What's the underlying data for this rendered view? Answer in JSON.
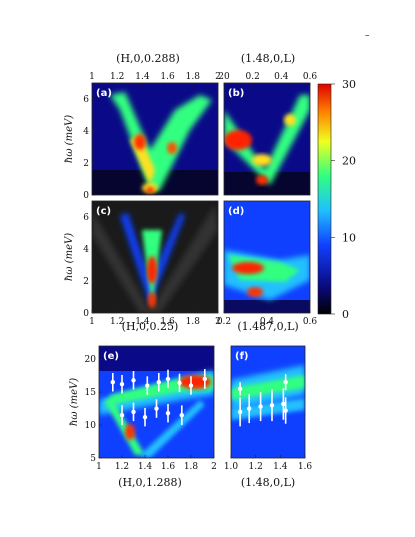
{
  "figure": {
    "corner_mark": "–",
    "top_titles": [
      "(H,0,0.288)",
      "(1.48,0,L)"
    ],
    "mid_titles": [
      "(H,0,0.25)",
      "(1.487,0,L)"
    ],
    "bottom_titles": [
      "(H,0,1.288)",
      "(1.48,0,L)"
    ],
    "ylabel_energy": "ħω (meV)",
    "colorbar": {
      "ticks": [
        "30",
        "20",
        "10",
        "0"
      ],
      "range": [
        0,
        30
      ]
    },
    "panels": [
      "(a)",
      "(b)",
      "(c)",
      "(d)",
      "(e)",
      "(f)"
    ]
  },
  "chart_data": [
    {
      "type": "heatmap",
      "panel": "(a)",
      "xlabel": "(H,0,0.288)",
      "ylabel": "ħω (meV)",
      "xlim": [
        1,
        2
      ],
      "ylim": [
        0,
        7
      ],
      "xticks": [
        "1",
        "1.2",
        "1.4",
        "1.6",
        "1.8",
        "2"
      ],
      "yticks": [
        "0",
        "2",
        "4",
        "6"
      ]
    },
    {
      "type": "heatmap",
      "panel": "(b)",
      "xlabel": "(1.48,0,L)",
      "xlim": [
        0,
        0.7
      ],
      "ylim": [
        0,
        7
      ],
      "xticks": [
        "20",
        "0.2",
        "0.4",
        "0.6"
      ]
    },
    {
      "type": "heatmap",
      "panel": "(c)",
      "xlabel": "(H,0,0.25)",
      "ylabel": "ħω (meV)",
      "xlim": [
        1,
        2
      ],
      "ylim": [
        0,
        7
      ],
      "xticks": [
        "1",
        "1.2",
        "1.4",
        "1.6",
        "1.8",
        "2"
      ],
      "yticks": [
        "0",
        "2",
        "4",
        "6"
      ]
    },
    {
      "type": "heatmap",
      "panel": "(d)",
      "xlabel": "(1.487,0,L)",
      "xlim": [
        0,
        0.7
      ],
      "ylim": [
        0,
        7
      ],
      "xticks": [
        "0.2",
        "0.4",
        "0.6"
      ]
    },
    {
      "type": "heatmap",
      "panel": "(e)",
      "xlabel": "(H,0,1.288)",
      "ylabel": "ħω (meV)",
      "xlim": [
        1,
        2
      ],
      "ylim": [
        5,
        22
      ],
      "xticks": [
        "1",
        "1.2",
        "1.4",
        "1.6",
        "1.8",
        "2"
      ],
      "yticks": [
        "5",
        "10",
        "15",
        "20"
      ],
      "points": [
        {
          "x": 1.12,
          "y": 16.5,
          "err": 1.4
        },
        {
          "x": 1.2,
          "y": 16.2,
          "err": 1.4
        },
        {
          "x": 1.3,
          "y": 16.8,
          "err": 1.4
        },
        {
          "x": 1.42,
          "y": 16.0,
          "err": 1.4
        },
        {
          "x": 1.52,
          "y": 16.5,
          "err": 1.4
        },
        {
          "x": 1.6,
          "y": 17.0,
          "err": 1.4
        },
        {
          "x": 1.7,
          "y": 16.4,
          "err": 1.4
        },
        {
          "x": 1.8,
          "y": 16.0,
          "err": 1.4
        },
        {
          "x": 1.92,
          "y": 17.0,
          "err": 1.5
        },
        {
          "x": 1.2,
          "y": 11.5,
          "err": 1.5
        },
        {
          "x": 1.3,
          "y": 12.0,
          "err": 1.4
        },
        {
          "x": 1.4,
          "y": 11.2,
          "err": 1.4
        },
        {
          "x": 1.5,
          "y": 12.5,
          "err": 1.4
        },
        {
          "x": 1.6,
          "y": 11.8,
          "err": 1.4
        },
        {
          "x": 1.72,
          "y": 11.5,
          "err": 1.5
        }
      ]
    },
    {
      "type": "heatmap",
      "panel": "(f)",
      "xlabel": "(1.48,0,L)",
      "xlim": [
        1.0,
        1.65
      ],
      "ylim": [
        5,
        22
      ],
      "xticks": [
        "1.0",
        "1.2",
        "1.4",
        "1.6"
      ],
      "points": [
        {
          "x": 1.08,
          "y": 12.0,
          "err": 2.2
        },
        {
          "x": 1.16,
          "y": 12.5,
          "err": 2.2
        },
        {
          "x": 1.26,
          "y": 12.8,
          "err": 2.2
        },
        {
          "x": 1.36,
          "y": 13.0,
          "err": 2.4
        },
        {
          "x": 1.46,
          "y": 13.2,
          "err": 2.4
        },
        {
          "x": 1.48,
          "y": 12.2,
          "err": 2.0
        },
        {
          "x": 1.08,
          "y": 15.5,
          "err": 1.0
        },
        {
          "x": 1.48,
          "y": 16.5,
          "err": 1.2
        }
      ]
    }
  ]
}
